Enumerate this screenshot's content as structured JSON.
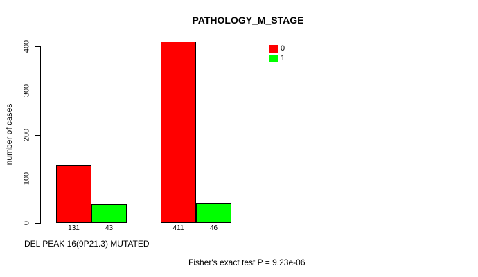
{
  "chart_data": {
    "type": "bar",
    "title": "PATHOLOGY_M_STAGE",
    "ylabel": "number of cases",
    "xlabel": "DEL PEAK 16(9P21.3) MUTATED",
    "annotation": "Fisher's exact test P = 9.23e-06",
    "ylim": [
      0,
      400
    ],
    "yticks": [
      "0",
      "100",
      "200",
      "300",
      "400"
    ],
    "grid": false,
    "legend_position": "top-right",
    "categories": [
      "group 1",
      "group 2"
    ],
    "series": [
      {
        "name": "0",
        "color": "#FF0000",
        "values": [
          131,
          411
        ]
      },
      {
        "name": "1",
        "color": "#00FF00",
        "values": [
          43,
          46
        ]
      }
    ],
    "bar_value_labels": [
      "131",
      "43",
      "411",
      "46"
    ]
  }
}
